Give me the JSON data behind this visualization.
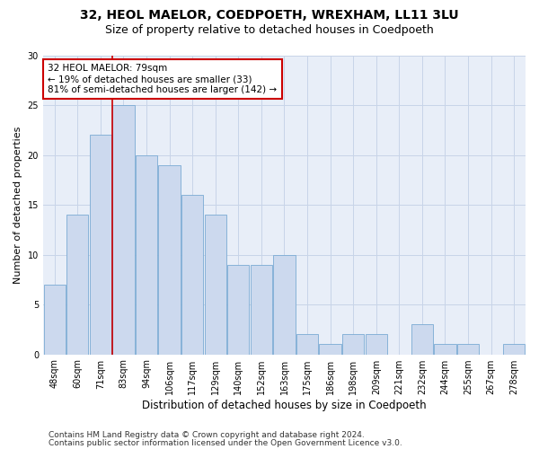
{
  "title1": "32, HEOL MAELOR, COEDPOETH, WREXHAM, LL11 3LU",
  "title2": "Size of property relative to detached houses in Coedpoeth",
  "xlabel": "Distribution of detached houses by size in Coedpoeth",
  "ylabel": "Number of detached properties",
  "categories": [
    "48sqm",
    "60sqm",
    "71sqm",
    "83sqm",
    "94sqm",
    "106sqm",
    "117sqm",
    "129sqm",
    "140sqm",
    "152sqm",
    "163sqm",
    "175sqm",
    "186sqm",
    "198sqm",
    "209sqm",
    "221sqm",
    "232sqm",
    "244sqm",
    "255sqm",
    "267sqm",
    "278sqm"
  ],
  "values": [
    7,
    14,
    22,
    25,
    20,
    19,
    16,
    14,
    9,
    9,
    10,
    2,
    1,
    2,
    2,
    0,
    3,
    1,
    1,
    0,
    1
  ],
  "bar_color": "#ccd9ee",
  "bar_edge_color": "#7aaad4",
  "vline_color": "#cc0000",
  "annotation_text": "32 HEOL MAELOR: 79sqm\n← 19% of detached houses are smaller (33)\n81% of semi-detached houses are larger (142) →",
  "annotation_box_color": "#cc0000",
  "ylim": [
    0,
    30
  ],
  "yticks": [
    0,
    5,
    10,
    15,
    20,
    25,
    30
  ],
  "grid_color": "#c8d4e8",
  "background_color": "#e8eef8",
  "footer1": "Contains HM Land Registry data © Crown copyright and database right 2024.",
  "footer2": "Contains public sector information licensed under the Open Government Licence v3.0.",
  "title1_fontsize": 10,
  "title2_fontsize": 9,
  "xlabel_fontsize": 8.5,
  "ylabel_fontsize": 8,
  "tick_fontsize": 7,
  "annotation_fontsize": 7.5,
  "footer_fontsize": 6.5
}
